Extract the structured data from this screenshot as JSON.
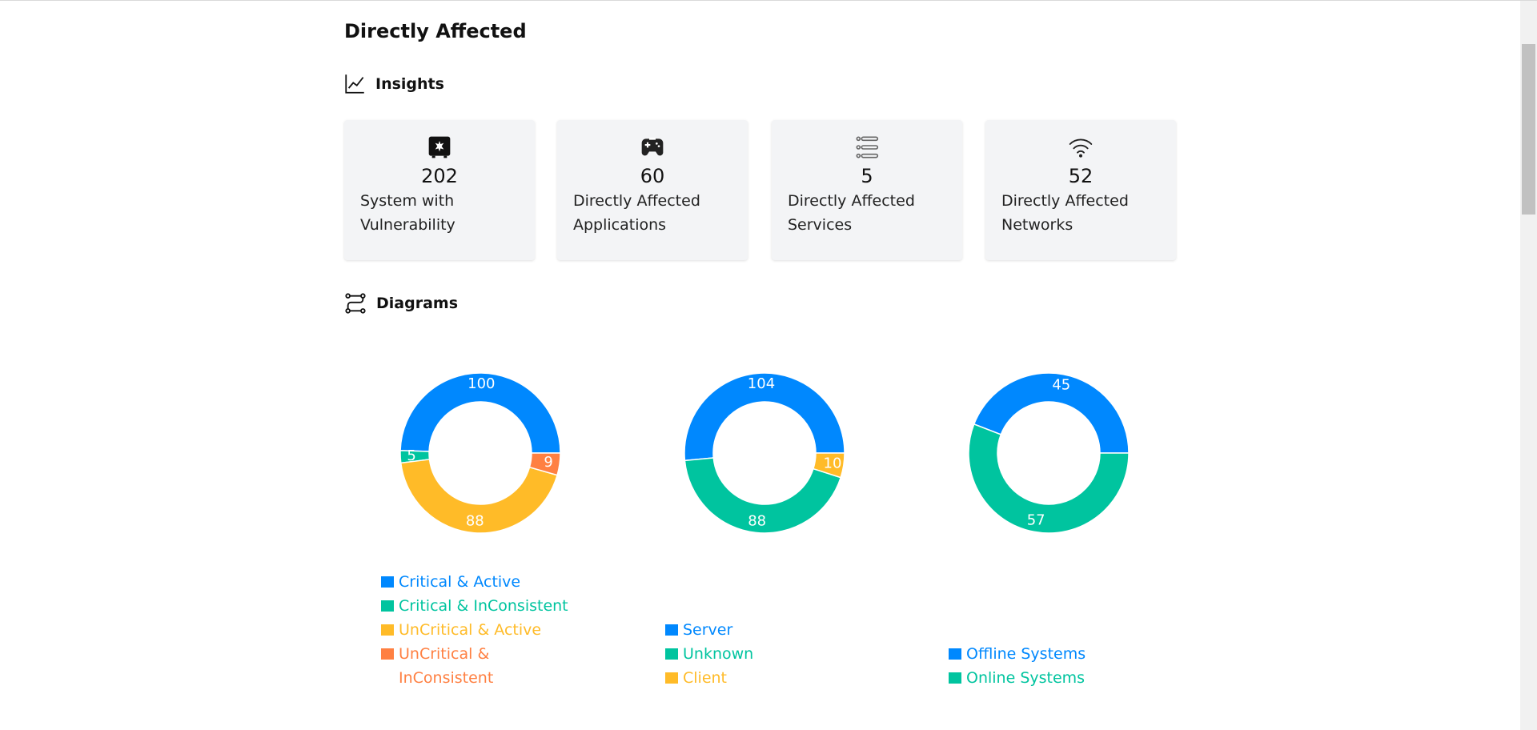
{
  "title": "Directly Affected",
  "insights": {
    "title": "Insights",
    "cards": [
      {
        "value": 202,
        "label": "System with Vulnerability"
      },
      {
        "value": 60,
        "label": "Directly Affected Applications"
      },
      {
        "value": 5,
        "label": "Directly Affected Services"
      },
      {
        "value": 52,
        "label": "Directly Affected Networks"
      }
    ]
  },
  "diagrams": {
    "title": "Diagrams"
  },
  "chart_data": [
    {
      "type": "pie",
      "donut": true,
      "categories": [
        "Critical & Active",
        "Critical & InConsistent",
        "UnCritical & Active",
        "UnCritical & InConsistent"
      ],
      "values": [
        100,
        5,
        88,
        9
      ],
      "colors": [
        "#0088FE",
        "#00C49F",
        "#FFBB28",
        "#FF8042"
      ]
    },
    {
      "type": "pie",
      "donut": true,
      "categories": [
        "Server",
        "Unknown",
        "Client"
      ],
      "values": [
        104,
        88,
        10
      ],
      "colors": [
        "#0088FE",
        "#00C49F",
        "#FFBB28"
      ]
    },
    {
      "type": "pie",
      "donut": true,
      "categories": [
        "Offline Systems",
        "Online Systems"
      ],
      "values": [
        45,
        57
      ],
      "colors": [
        "#0088FE",
        "#00C49F"
      ]
    }
  ]
}
